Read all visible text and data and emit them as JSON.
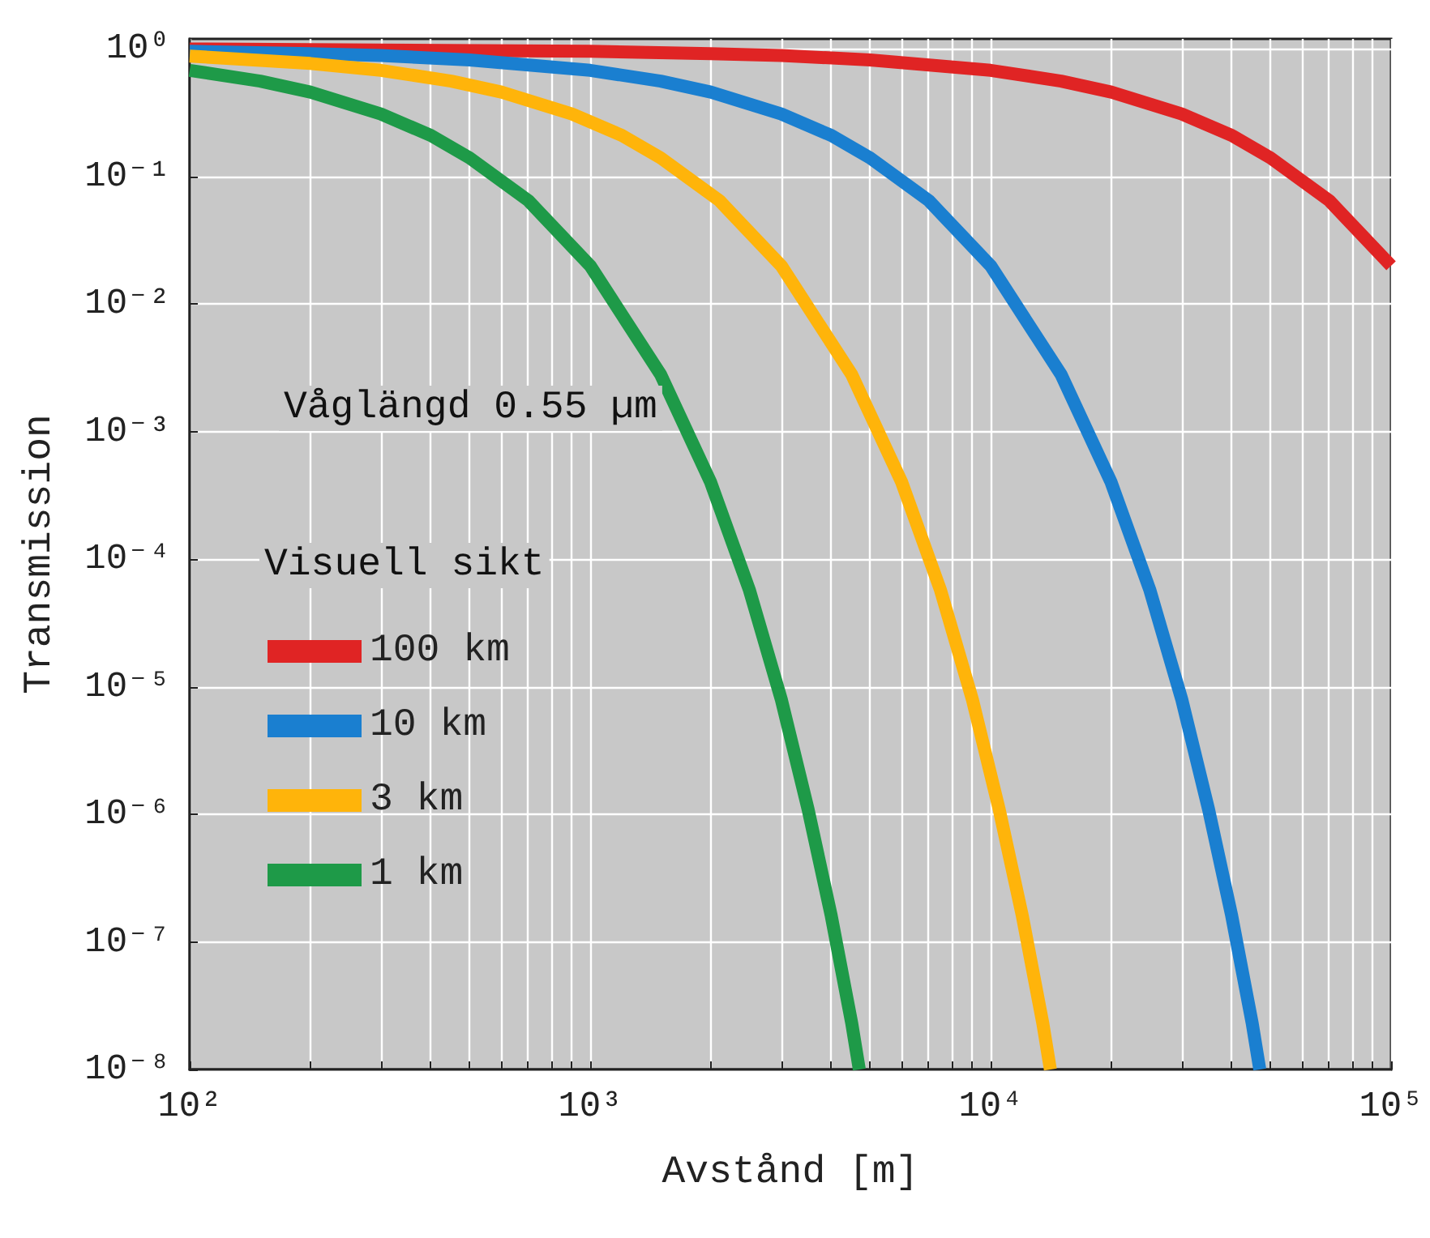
{
  "chart_data": {
    "type": "line",
    "xlabel": "Avstånd [m]",
    "ylabel": "Transmission",
    "legend_title": "Visuell sikt",
    "annotations": [
      "Våglängd 0.55 µm"
    ],
    "log": "xy",
    "grid": true,
    "legend": "left",
    "marker": "none",
    "line_style": "solid",
    "xlim": [
      100,
      100000
    ],
    "ylim": [
      1e-08,
      1.2
    ],
    "xticks": [
      {
        "value": 100,
        "label": "10²"
      },
      {
        "value": 200,
        "label": null
      },
      {
        "value": 300,
        "label": null
      },
      {
        "value": 400,
        "label": null
      },
      {
        "value": 500,
        "label": null
      },
      {
        "value": 600,
        "label": null
      },
      {
        "value": 700,
        "label": null
      },
      {
        "value": 800,
        "label": null
      },
      {
        "value": 900,
        "label": null
      },
      {
        "value": 1000,
        "label": "10³"
      },
      {
        "value": 2000,
        "label": null
      },
      {
        "value": 3000,
        "label": null
      },
      {
        "value": 4000,
        "label": null
      },
      {
        "value": 5000,
        "label": null
      },
      {
        "value": 6000,
        "label": null
      },
      {
        "value": 7000,
        "label": null
      },
      {
        "value": 8000,
        "label": null
      },
      {
        "value": 9000,
        "label": null
      },
      {
        "value": 10000,
        "label": "10⁴"
      },
      {
        "value": 20000,
        "label": null
      },
      {
        "value": 30000,
        "label": null
      },
      {
        "value": 40000,
        "label": null
      },
      {
        "value": 50000,
        "label": null
      },
      {
        "value": 60000,
        "label": null
      },
      {
        "value": 70000,
        "label": null
      },
      {
        "value": 80000,
        "label": null
      },
      {
        "value": 90000,
        "label": null
      },
      {
        "value": 100000,
        "label": "10⁵"
      }
    ],
    "yticks": [
      {
        "value": 1,
        "label": "10⁰"
      },
      {
        "value": 0.1,
        "label": "10⁻¹"
      },
      {
        "value": 0.01,
        "label": "10⁻²"
      },
      {
        "value": 0.001,
        "label": "10⁻³"
      },
      {
        "value": 0.0001,
        "label": "10⁻⁴"
      },
      {
        "value": 1e-05,
        "label": "10⁻⁵"
      },
      {
        "value": 1e-06,
        "label": "10⁻⁶"
      },
      {
        "value": 1e-07,
        "label": "10⁻⁷"
      },
      {
        "value": 1e-08,
        "label": "10⁻⁸"
      }
    ],
    "series": [
      {
        "name": "100 km",
        "color": "#e02424",
        "x": [
          100,
          1000,
          2000,
          3000,
          5000,
          10000,
          15000,
          20000,
          30000,
          40000,
          50000,
          70000,
          100000
        ],
        "values": [
          1.0,
          0.96,
          0.92,
          0.89,
          0.82,
          0.68,
          0.56,
          0.46,
          0.31,
          0.21,
          0.14,
          0.065,
          0.02
        ]
      },
      {
        "name": "10 km",
        "color": "#1a7fd0",
        "x": [
          100,
          200,
          300,
          500,
          1000,
          1500,
          2000,
          3000,
          4000,
          5000,
          7000,
          10000,
          15000,
          20000,
          25000,
          30000,
          35000,
          40000,
          45000,
          47000
        ],
        "values": [
          0.96,
          0.92,
          0.89,
          0.82,
          0.68,
          0.56,
          0.46,
          0.31,
          0.21,
          0.14,
          0.065,
          0.02,
          0.0028,
          0.0004,
          5.7e-05,
          8e-06,
          1.1e-06,
          1.6e-07,
          2.3e-08,
          1e-08
        ]
      },
      {
        "name": "3 km",
        "color": "#ffb40a",
        "x": [
          100,
          200,
          300,
          450,
          600,
          900,
          1200,
          1500,
          2100,
          3000,
          4500,
          6000,
          7500,
          9000,
          10500,
          12000,
          13500,
          14100
        ],
        "values": [
          0.88,
          0.77,
          0.68,
          0.56,
          0.46,
          0.31,
          0.21,
          0.14,
          0.065,
          0.02,
          0.0028,
          0.0004,
          5.7e-05,
          8e-06,
          1.1e-06,
          1.6e-07,
          2.3e-08,
          1e-08
        ]
      },
      {
        "name": "1 km",
        "color": "#1e9a48",
        "x": [
          100,
          150,
          200,
          300,
          400,
          500,
          700,
          1000,
          1500,
          2000,
          2500,
          3000,
          3500,
          4000,
          4500,
          4700
        ],
        "values": [
          0.68,
          0.56,
          0.46,
          0.31,
          0.21,
          0.14,
          0.065,
          0.02,
          0.0028,
          0.0004,
          5.7e-05,
          8e-06,
          1.1e-06,
          1.6e-07,
          2.3e-08,
          1e-08
        ]
      }
    ]
  }
}
